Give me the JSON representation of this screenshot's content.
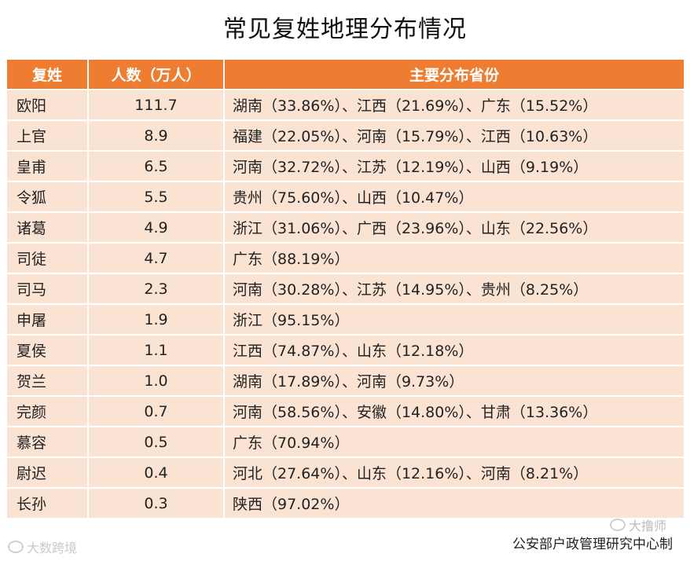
{
  "title": "常见复姓地理分布情况",
  "table": {
    "headers": [
      "复姓",
      "人数（万人）",
      "主要分布省份"
    ],
    "rows": [
      {
        "surname": "欧阳",
        "population": "111.7",
        "provinces": "湖南（33.86%）、江西（21.69%）、广东（15.52%）"
      },
      {
        "surname": "上官",
        "population": "8.9",
        "provinces": "福建（22.05%）、河南（15.79%）、江西（10.63%）"
      },
      {
        "surname": "皇甫",
        "population": "6.5",
        "provinces": "河南（32.72%）、江苏（12.19%）、山西（9.19%）"
      },
      {
        "surname": "令狐",
        "population": "5.5",
        "provinces": "贵州（75.60%）、山西（10.47%）"
      },
      {
        "surname": "诸葛",
        "population": "4.9",
        "provinces": "浙江（31.06%）、广西（23.96%）、山东（22.56%）"
      },
      {
        "surname": "司徒",
        "population": "4.7",
        "provinces": "广东（88.19%）"
      },
      {
        "surname": "司马",
        "population": "2.3",
        "provinces": "河南（30.28%）、江苏（14.95%）、贵州（8.25%）"
      },
      {
        "surname": "申屠",
        "population": "1.9",
        "provinces": "浙江（95.15%）"
      },
      {
        "surname": "夏侯",
        "population": "1.1",
        "provinces": "江西（74.87%）、山东（12.18%）"
      },
      {
        "surname": "贺兰",
        "population": "1.0",
        "provinces": "湖南（17.89%）、河南（9.73%）"
      },
      {
        "surname": "完颜",
        "population": "0.7",
        "provinces": "河南（58.56%）、安徽（14.80%）、甘肃（13.36%）"
      },
      {
        "surname": "慕容",
        "population": "0.5",
        "provinces": "广东（70.94%）"
      },
      {
        "surname": "尉迟",
        "population": "0.4",
        "provinces": "河北（27.64%）、山东（12.16%）、河南（8.21%）"
      },
      {
        "surname": "长孙",
        "population": "0.3",
        "provinces": "陕西（97.02%）"
      }
    ]
  },
  "source": "公安部户政管理研究中心制",
  "watermark_left": "大数跨境",
  "watermark_right": "大撸师",
  "colors": {
    "header_bg": "#ee7d31",
    "row_bg": "#fbe3d4"
  }
}
